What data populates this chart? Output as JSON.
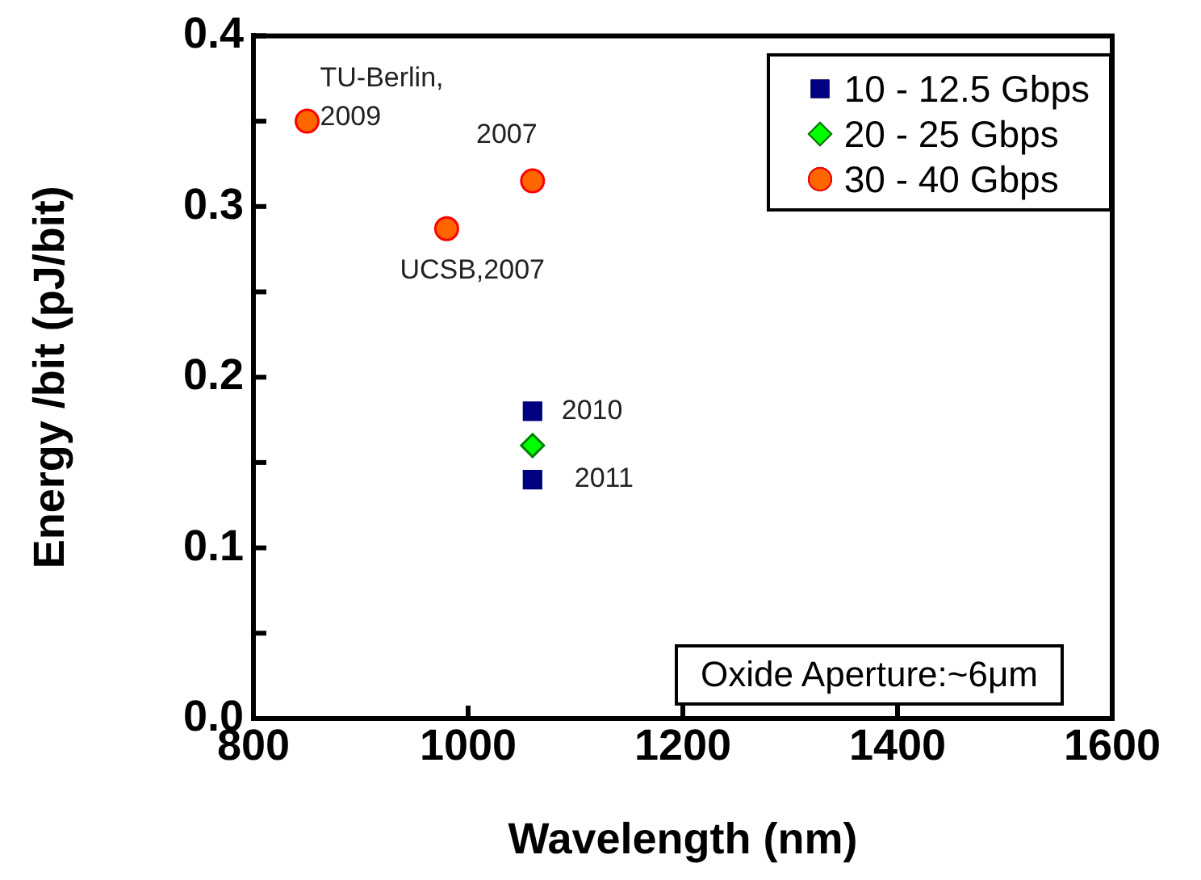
{
  "chart_data": {
    "type": "scatter",
    "xlabel": "Wavelength (nm)",
    "ylabel": "Energy /bit (pJ/bit)",
    "xlim": [
      800,
      1600
    ],
    "xticks": [
      800,
      1000,
      1200,
      1400,
      1600
    ],
    "ylim": [
      0,
      0.4
    ],
    "yticks": [
      {
        "value": 0,
        "label": "0.0"
      },
      {
        "value": 0.05,
        "label": null
      },
      0.1,
      {
        "value": 0.15,
        "label": null
      },
      0.2,
      {
        "value": 0.25,
        "label": null
      },
      0.3,
      {
        "value": 0.35,
        "label": null
      },
      0.4
    ],
    "grid": false,
    "legend": "top right",
    "series": [
      {
        "name": "10 - 12.5 Gbps",
        "color": "#000080",
        "marker": "square",
        "x": [
          1060,
          1060
        ],
        "values": [
          0.18,
          0.14
        ]
      },
      {
        "name": "20 - 25 Gbps",
        "color": "#00ff00",
        "marker": "diamond",
        "x": [
          1060
        ],
        "values": [
          0.16
        ]
      },
      {
        "name": "30 - 40 Gbps",
        "color": "#ff6600",
        "marker": "circle",
        "x": [
          850,
          980,
          1060
        ],
        "values": [
          0.35,
          0.287,
          0.315
        ]
      }
    ],
    "annotations": [
      {
        "text": "TU-Berlin,\n2009",
        "x": 850,
        "y": 0.35
      },
      {
        "text": "UCSB,2007",
        "x": 980,
        "y": 0.287
      },
      {
        "text": "2007",
        "x": 1060,
        "y": 0.315
      },
      {
        "text": "2010",
        "x": 1060,
        "y": 0.18
      },
      {
        "text": "2011",
        "x": 1060,
        "y": 0.14
      },
      "Oxide Aperture:~6μm"
    ]
  }
}
